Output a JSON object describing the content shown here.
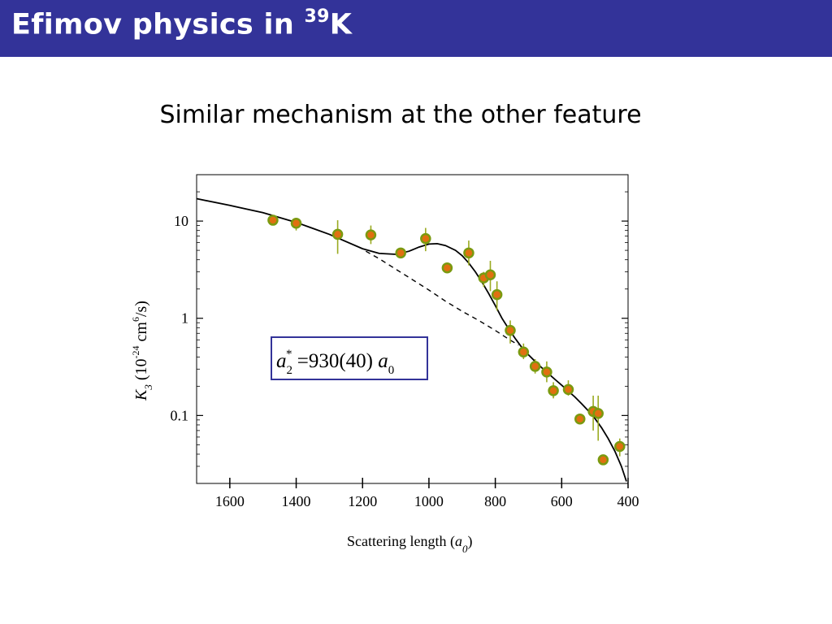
{
  "slide": {
    "title_main": "Efimov physics in ",
    "title_sup": "39",
    "title_tail": "K",
    "subtitle": "Similar mechanism at the other feature"
  },
  "colors": {
    "title_bar": "#333399",
    "marker_fill": "#E07010",
    "marker_ring": "#7A9A10",
    "errorbar": "#9AAA20",
    "box_border": "#333399"
  },
  "chart_data": {
    "type": "scatter",
    "xlabel_main": "Scattering length (",
    "xlabel_var": "a",
    "xlabel_sub": "0",
    "xlabel_close": ")",
    "ylabel_var": "K",
    "ylabel_sub": "3",
    "ylabel_open": " (10",
    "ylabel_exp1": "-24",
    "ylabel_unit": " cm",
    "ylabel_exp2": "6",
    "ylabel_close": "/s)",
    "x_reversed": true,
    "xlim": [
      1700,
      400
    ],
    "ylim": [
      0.02,
      30
    ],
    "y_scale": "log",
    "x_ticks": [
      1600,
      1400,
      1200,
      1000,
      800,
      600,
      400
    ],
    "x_tick_labels": [
      "1600",
      "1400",
      "1200",
      "1000",
      "800",
      "600",
      "400"
    ],
    "y_ticks": [
      10,
      1,
      0.1
    ],
    "y_tick_labels": [
      "10",
      "1",
      "0.1"
    ],
    "annotation": {
      "var": "a",
      "sub": "2",
      "sup": "*",
      "text": " =930(40) ",
      "var2": "a",
      "sub2": "0"
    },
    "series": [
      {
        "kind": "data",
        "points": [
          {
            "x": 1470,
            "y": 10.2,
            "lo": 10.0,
            "hi": 10.5
          },
          {
            "x": 1400,
            "y": 9.5,
            "lo": 8.0,
            "hi": 10.3
          },
          {
            "x": 1275,
            "y": 7.3,
            "lo": 4.6,
            "hi": 10.2
          },
          {
            "x": 1175,
            "y": 7.2,
            "lo": 5.8,
            "hi": 9.0
          },
          {
            "x": 1085,
            "y": 4.7,
            "lo": 4.3,
            "hi": 5.2
          },
          {
            "x": 1010,
            "y": 6.6,
            "lo": 4.9,
            "hi": 8.5
          },
          {
            "x": 945,
            "y": 3.3,
            "lo": 3.2,
            "hi": 3.5
          },
          {
            "x": 880,
            "y": 4.7,
            "lo": 3.5,
            "hi": 6.3
          },
          {
            "x": 835,
            "y": 2.6,
            "lo": 2.1,
            "hi": 3.0
          },
          {
            "x": 815,
            "y": 2.8,
            "lo": 1.9,
            "hi": 3.9
          },
          {
            "x": 795,
            "y": 1.75,
            "lo": 1.2,
            "hi": 2.4
          },
          {
            "x": 755,
            "y": 0.75,
            "lo": 0.55,
            "hi": 0.95
          },
          {
            "x": 715,
            "y": 0.45,
            "lo": 0.38,
            "hi": 0.55
          },
          {
            "x": 680,
            "y": 0.32,
            "lo": 0.27,
            "hi": 0.38
          },
          {
            "x": 645,
            "y": 0.28,
            "lo": 0.22,
            "hi": 0.36
          },
          {
            "x": 625,
            "y": 0.18,
            "lo": 0.15,
            "hi": 0.22
          },
          {
            "x": 580,
            "y": 0.185,
            "lo": 0.16,
            "hi": 0.23
          },
          {
            "x": 545,
            "y": 0.092,
            "lo": 0.085,
            "hi": 0.1
          },
          {
            "x": 505,
            "y": 0.11,
            "lo": 0.07,
            "hi": 0.16
          },
          {
            "x": 490,
            "y": 0.105,
            "lo": 0.055,
            "hi": 0.16
          },
          {
            "x": 475,
            "y": 0.035,
            "lo": 0.033,
            "hi": 0.037
          },
          {
            "x": 425,
            "y": 0.048,
            "lo": 0.038,
            "hi": 0.058
          }
        ]
      },
      {
        "kind": "solid-curve",
        "x": [
          1700,
          1600,
          1500,
          1400,
          1300,
          1200,
          1150,
          1100,
          1060,
          1030,
          1000,
          975,
          950,
          920,
          900,
          880,
          860,
          840,
          820,
          800,
          780,
          760,
          740,
          720,
          700,
          680,
          660,
          640,
          620,
          600,
          580,
          560,
          540,
          520,
          500,
          480,
          460,
          440,
          420,
          405
        ],
        "y": [
          17,
          14.5,
          12.2,
          9.7,
          7.3,
          5.2,
          4.65,
          4.55,
          4.9,
          5.4,
          5.8,
          5.85,
          5.6,
          5.0,
          4.4,
          3.7,
          3.0,
          2.35,
          1.8,
          1.35,
          1.0,
          0.78,
          0.62,
          0.5,
          0.42,
          0.36,
          0.31,
          0.27,
          0.235,
          0.205,
          0.178,
          0.155,
          0.132,
          0.112,
          0.093,
          0.075,
          0.058,
          0.043,
          0.03,
          0.021
        ]
      },
      {
        "kind": "dashed-curve",
        "x": [
          1190,
          1150,
          1100,
          1050,
          1000,
          950,
          900,
          850,
          800,
          760,
          730
        ],
        "y": [
          4.9,
          4.1,
          3.2,
          2.5,
          1.95,
          1.5,
          1.18,
          0.95,
          0.75,
          0.61,
          0.53
        ]
      }
    ]
  }
}
